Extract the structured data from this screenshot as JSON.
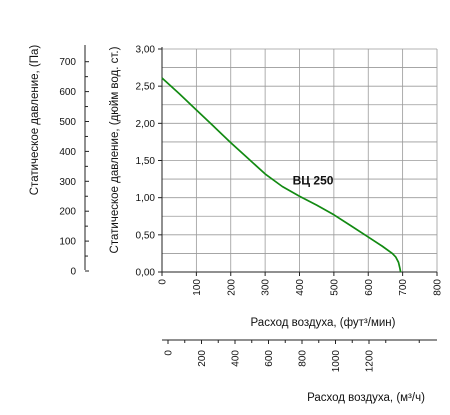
{
  "chart_data": {
    "type": "line",
    "series": [
      {
        "name": "ВЦ 250",
        "color": "#128a12",
        "x": [
          0,
          50,
          100,
          150,
          200,
          250,
          300,
          350,
          400,
          450,
          500,
          550,
          600,
          640,
          670,
          680,
          688,
          692,
          694
        ],
        "y": [
          2.61,
          2.4,
          2.18,
          1.96,
          1.74,
          1.53,
          1.32,
          1.15,
          1.02,
          0.9,
          0.77,
          0.62,
          0.47,
          0.35,
          0.25,
          0.2,
          0.13,
          0.05,
          0.0
        ]
      }
    ],
    "x_primary": {
      "label": "Расход воздуха, (фут³/мин)",
      "range": [
        0,
        800
      ],
      "ticks": [
        "0",
        "100",
        "200",
        "300",
        "400",
        "500",
        "600",
        "700",
        "800"
      ]
    },
    "y_primary": {
      "label": "Статическое давление, (дюйм вод. ст.)",
      "range": [
        0,
        3
      ],
      "ticks": [
        "0,00",
        "0,50",
        "1,00",
        "1,50",
        "2,00",
        "2,50",
        "3,00"
      ]
    },
    "y_secondary": {
      "label": "Статическое давление, (Па)",
      "ticks": [
        "0",
        "100",
        "200",
        "300",
        "400",
        "500",
        "600",
        "700"
      ]
    },
    "x_secondary": {
      "label": "Расход воздуха, (м³/ч)",
      "ticks": [
        "0",
        "200",
        "400",
        "600",
        "800",
        "1000",
        "1200"
      ]
    },
    "grid": true
  }
}
